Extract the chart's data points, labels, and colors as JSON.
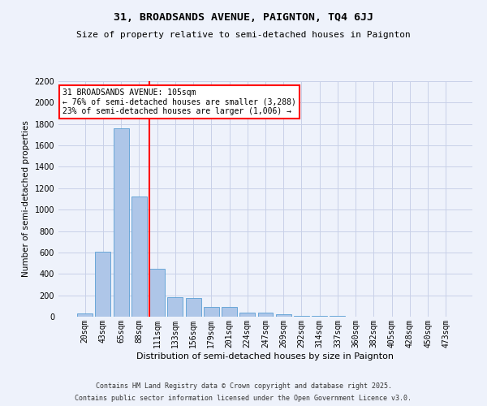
{
  "title1": "31, BROADSANDS AVENUE, PAIGNTON, TQ4 6JJ",
  "title2": "Size of property relative to semi-detached houses in Paignton",
  "xlabel": "Distribution of semi-detached houses by size in Paignton",
  "ylabel": "Number of semi-detached properties",
  "annotation_line1": "31 BROADSANDS AVENUE: 105sqm",
  "annotation_line2": "← 76% of semi-detached houses are smaller (3,288)",
  "annotation_line3": "23% of semi-detached houses are larger (1,006) →",
  "footer1": "Contains HM Land Registry data © Crown copyright and database right 2025.",
  "footer2": "Contains public sector information licensed under the Open Government Licence v3.0.",
  "bar_labels": [
    "20sqm",
    "43sqm",
    "65sqm",
    "88sqm",
    "111sqm",
    "133sqm",
    "156sqm",
    "179sqm",
    "201sqm",
    "224sqm",
    "247sqm",
    "269sqm",
    "292sqm",
    "314sqm",
    "337sqm",
    "360sqm",
    "382sqm",
    "405sqm",
    "428sqm",
    "450sqm",
    "473sqm"
  ],
  "bar_values": [
    30,
    610,
    1760,
    1120,
    450,
    185,
    175,
    90,
    90,
    40,
    35,
    20,
    5,
    10,
    5,
    3,
    2,
    1,
    1,
    1,
    1
  ],
  "bar_color": "#aec6e8",
  "bar_edge_color": "#5a9fd4",
  "vline_color": "red",
  "vline_x_index": 4,
  "ylim": [
    0,
    2200
  ],
  "yticks": [
    0,
    200,
    400,
    600,
    800,
    1000,
    1200,
    1400,
    1600,
    1800,
    2000,
    2200
  ],
  "background_color": "#eef2fb",
  "grid_color": "#c8d0e8",
  "annotation_box_color": "white",
  "annotation_box_edge": "red",
  "title1_fontsize": 9.5,
  "title2_fontsize": 8,
  "ylabel_fontsize": 7.5,
  "xlabel_fontsize": 8,
  "tick_fontsize": 7,
  "footer_fontsize": 6,
  "ann_fontsize": 7
}
